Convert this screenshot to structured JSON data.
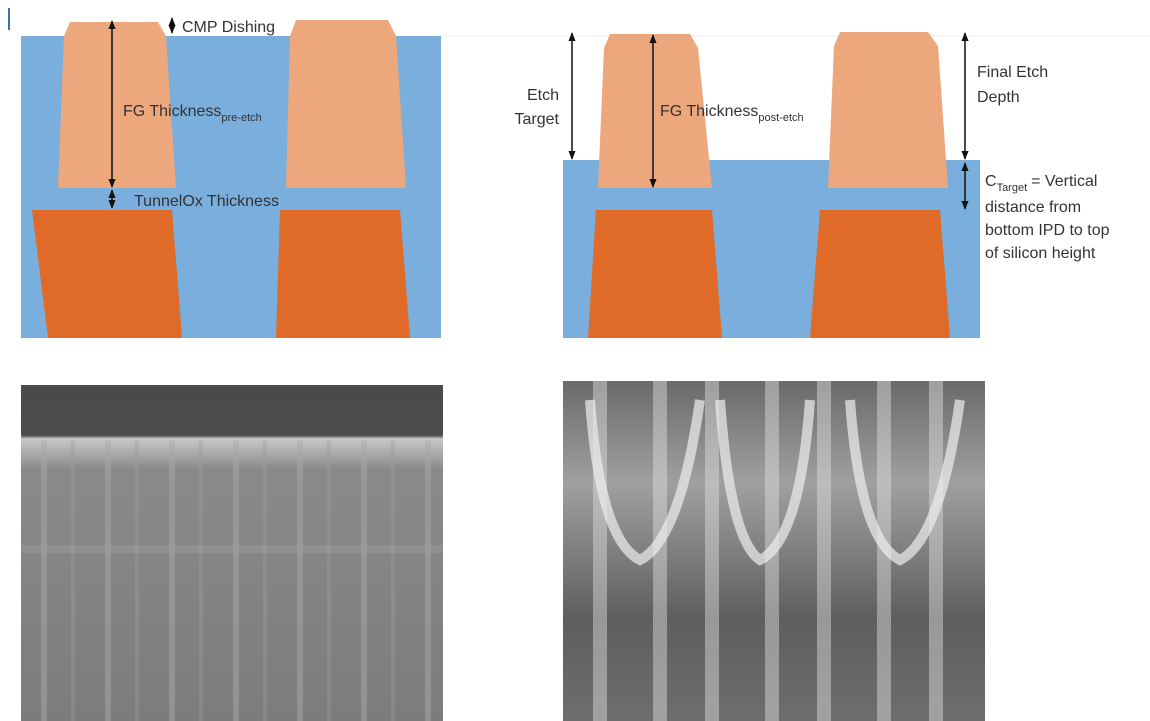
{
  "left_diagram": {
    "cmp_dishing": "CMP Dishing",
    "fg_thickness": {
      "main": "FG Thickness",
      "sub": "pre-etch"
    },
    "tunnel_ox": "TunnelOx Thickness"
  },
  "right_diagram": {
    "etch_target": [
      "Etch",
      "Target"
    ],
    "fg_thickness": {
      "main": "FG Thickness",
      "sub": "post-etch"
    },
    "final_etch_depth": [
      "Final Etch",
      "Depth"
    ],
    "c_target": {
      "main": "C",
      "sub": "Target",
      "rest": "= Vertical",
      "lines": [
        "distance from",
        "bottom IPD to top",
        "of silicon height"
      ]
    }
  }
}
